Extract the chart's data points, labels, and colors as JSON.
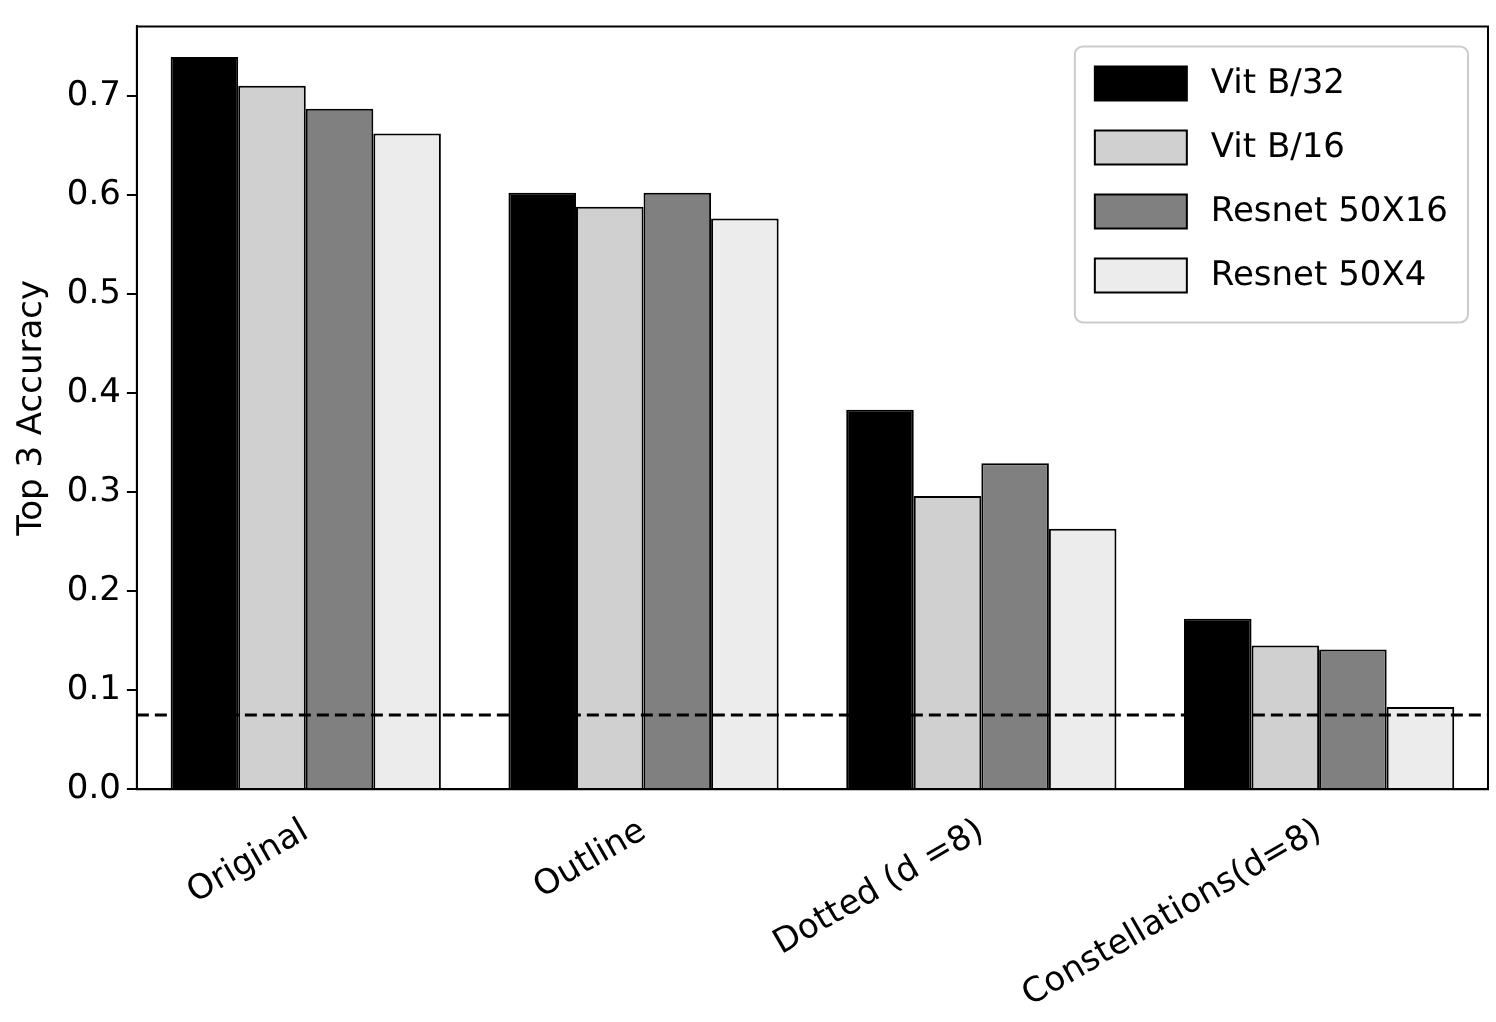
{
  "chart_data": {
    "type": "bar",
    "ylabel": "Top 3 Accuracy",
    "categories": [
      "Original",
      "Outline",
      "Dotted (d =8)",
      "Constellations(d=8)"
    ],
    "series": [
      {
        "name": "Vit B/32",
        "color": "#000000",
        "values": [
          0.739,
          0.602,
          0.383,
          0.172
        ]
      },
      {
        "name": "Vit B/16",
        "color": "#d0d0d0",
        "values": [
          0.71,
          0.588,
          0.296,
          0.145
        ]
      },
      {
        "name": "Resnet 50X16",
        "color": "#808080",
        "values": [
          0.687,
          0.602,
          0.329,
          0.141
        ]
      },
      {
        "name": "Resnet 50X4",
        "color": "#ececec",
        "values": [
          0.662,
          0.576,
          0.263,
          0.083
        ]
      }
    ],
    "ylim": [
      0,
      0.77
    ],
    "yticks": [
      {
        "value": 0,
        "label": "0.0"
      },
      0.1,
      0.2,
      0.3,
      0.4,
      0.5,
      0.6,
      0.7
    ],
    "ref_lines": [
      {
        "axis": "y",
        "value": 0.075,
        "line_style": "dashed",
        "color": "#000000"
      }
    ],
    "grid": false,
    "legend": "top right"
  }
}
